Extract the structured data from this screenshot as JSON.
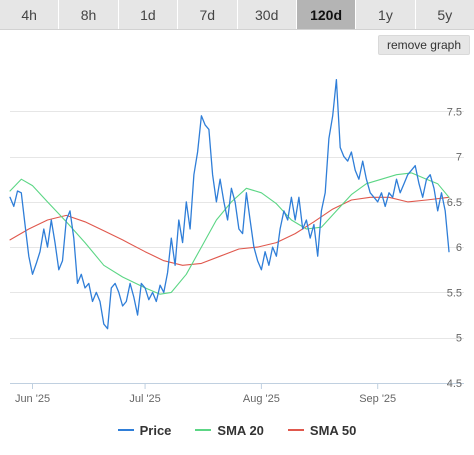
{
  "tabs": [
    {
      "label": "4h",
      "active": false
    },
    {
      "label": "8h",
      "active": false
    },
    {
      "label": "1d",
      "active": false
    },
    {
      "label": "7d",
      "active": false
    },
    {
      "label": "30d",
      "active": false
    },
    {
      "label": "120d",
      "active": true
    },
    {
      "label": "1y",
      "active": false
    },
    {
      "label": "5y",
      "active": false
    }
  ],
  "remove_graph_label": "remove graph",
  "legend": [
    {
      "label": "Price",
      "color": "#2f7ed8"
    },
    {
      "label": "SMA 20",
      "color": "#5cd685"
    },
    {
      "label": "SMA 50",
      "color": "#e0584d"
    }
  ],
  "chart_data": {
    "type": "line",
    "title": "",
    "xlabel": "",
    "ylabel": "",
    "ylim": [
      4.5,
      8.0
    ],
    "yticks": [
      4.5,
      5,
      5.5,
      6,
      6.5,
      7,
      7.5
    ],
    "ytick_labels": [
      "4.5",
      "5",
      "5.5",
      "6",
      "6.5",
      "7",
      "7.5"
    ],
    "xlim": [
      "2025-05-26",
      "2025-09-24"
    ],
    "xticks": [
      {
        "date": "2025-06-01",
        "label": "Jun '25"
      },
      {
        "date": "2025-07-01",
        "label": "Jul '25"
      },
      {
        "date": "2025-08-01",
        "label": "Aug '25"
      },
      {
        "date": "2025-09-01",
        "label": "Sep '25"
      }
    ],
    "grid": true,
    "legend_position": "bottom",
    "series": [
      {
        "name": "Price",
        "color": "#2f7ed8",
        "points": [
          [
            "2025-05-26",
            6.55
          ],
          [
            "2025-05-27",
            6.45
          ],
          [
            "2025-05-28",
            6.62
          ],
          [
            "2025-05-29",
            6.6
          ],
          [
            "2025-05-30",
            6.25
          ],
          [
            "2025-05-31",
            5.9
          ],
          [
            "2025-06-01",
            5.7
          ],
          [
            "2025-06-02",
            5.82
          ],
          [
            "2025-06-03",
            5.95
          ],
          [
            "2025-06-04",
            6.2
          ],
          [
            "2025-06-05",
            6.0
          ],
          [
            "2025-06-06",
            6.3
          ],
          [
            "2025-06-07",
            6.05
          ],
          [
            "2025-06-08",
            5.75
          ],
          [
            "2025-06-09",
            5.85
          ],
          [
            "2025-06-10",
            6.3
          ],
          [
            "2025-06-11",
            6.4
          ],
          [
            "2025-06-12",
            6.1
          ],
          [
            "2025-06-13",
            5.6
          ],
          [
            "2025-06-14",
            5.7
          ],
          [
            "2025-06-15",
            5.55
          ],
          [
            "2025-06-16",
            5.6
          ],
          [
            "2025-06-17",
            5.4
          ],
          [
            "2025-06-18",
            5.5
          ],
          [
            "2025-06-19",
            5.4
          ],
          [
            "2025-06-20",
            5.15
          ],
          [
            "2025-06-21",
            5.1
          ],
          [
            "2025-06-22",
            5.55
          ],
          [
            "2025-06-23",
            5.6
          ],
          [
            "2025-06-24",
            5.5
          ],
          [
            "2025-06-25",
            5.35
          ],
          [
            "2025-06-26",
            5.4
          ],
          [
            "2025-06-27",
            5.6
          ],
          [
            "2025-06-28",
            5.45
          ],
          [
            "2025-06-29",
            5.25
          ],
          [
            "2025-06-30",
            5.6
          ],
          [
            "2025-07-01",
            5.55
          ],
          [
            "2025-07-02",
            5.42
          ],
          [
            "2025-07-03",
            5.5
          ],
          [
            "2025-07-04",
            5.4
          ],
          [
            "2025-07-05",
            5.58
          ],
          [
            "2025-07-06",
            5.5
          ],
          [
            "2025-07-07",
            5.72
          ],
          [
            "2025-07-08",
            6.1
          ],
          [
            "2025-07-09",
            5.8
          ],
          [
            "2025-07-10",
            6.3
          ],
          [
            "2025-07-11",
            6.05
          ],
          [
            "2025-07-12",
            6.5
          ],
          [
            "2025-07-13",
            6.2
          ],
          [
            "2025-07-14",
            6.8
          ],
          [
            "2025-07-15",
            7.05
          ],
          [
            "2025-07-16",
            7.45
          ],
          [
            "2025-07-17",
            7.35
          ],
          [
            "2025-07-18",
            7.3
          ],
          [
            "2025-07-19",
            6.8
          ],
          [
            "2025-07-20",
            6.5
          ],
          [
            "2025-07-21",
            6.75
          ],
          [
            "2025-07-22",
            6.5
          ],
          [
            "2025-07-23",
            6.3
          ],
          [
            "2025-07-24",
            6.65
          ],
          [
            "2025-07-25",
            6.5
          ],
          [
            "2025-07-26",
            6.2
          ],
          [
            "2025-07-27",
            6.15
          ],
          [
            "2025-07-28",
            6.6
          ],
          [
            "2025-07-29",
            6.3
          ],
          [
            "2025-07-30",
            6.0
          ],
          [
            "2025-07-31",
            5.85
          ],
          [
            "2025-08-01",
            5.75
          ],
          [
            "2025-08-02",
            5.95
          ],
          [
            "2025-08-03",
            5.8
          ],
          [
            "2025-08-04",
            6.0
          ],
          [
            "2025-08-05",
            5.9
          ],
          [
            "2025-08-06",
            6.2
          ],
          [
            "2025-08-07",
            6.4
          ],
          [
            "2025-08-08",
            6.3
          ],
          [
            "2025-08-09",
            6.55
          ],
          [
            "2025-08-10",
            6.3
          ],
          [
            "2025-08-11",
            6.55
          ],
          [
            "2025-08-12",
            6.2
          ],
          [
            "2025-08-13",
            6.3
          ],
          [
            "2025-08-14",
            6.1
          ],
          [
            "2025-08-15",
            6.25
          ],
          [
            "2025-08-16",
            5.9
          ],
          [
            "2025-08-17",
            6.4
          ],
          [
            "2025-08-18",
            6.6
          ],
          [
            "2025-08-19",
            7.2
          ],
          [
            "2025-08-20",
            7.45
          ],
          [
            "2025-08-21",
            7.85
          ],
          [
            "2025-08-22",
            7.1
          ],
          [
            "2025-08-23",
            7.0
          ],
          [
            "2025-08-24",
            6.95
          ],
          [
            "2025-08-25",
            7.05
          ],
          [
            "2025-08-26",
            6.85
          ],
          [
            "2025-08-27",
            6.75
          ],
          [
            "2025-08-28",
            6.95
          ],
          [
            "2025-08-29",
            6.75
          ],
          [
            "2025-08-30",
            6.6
          ],
          [
            "2025-08-31",
            6.55
          ],
          [
            "2025-09-01",
            6.5
          ],
          [
            "2025-09-02",
            6.6
          ],
          [
            "2025-09-03",
            6.45
          ],
          [
            "2025-09-04",
            6.6
          ],
          [
            "2025-09-05",
            6.55
          ],
          [
            "2025-09-06",
            6.75
          ],
          [
            "2025-09-07",
            6.6
          ],
          [
            "2025-09-08",
            6.7
          ],
          [
            "2025-09-09",
            6.8
          ],
          [
            "2025-09-10",
            6.85
          ],
          [
            "2025-09-11",
            6.9
          ],
          [
            "2025-09-12",
            6.7
          ],
          [
            "2025-09-13",
            6.55
          ],
          [
            "2025-09-14",
            6.75
          ],
          [
            "2025-09-15",
            6.8
          ],
          [
            "2025-09-16",
            6.65
          ],
          [
            "2025-09-17",
            6.4
          ],
          [
            "2025-09-18",
            6.6
          ],
          [
            "2025-09-19",
            6.4
          ],
          [
            "2025-09-20",
            5.95
          ]
        ]
      },
      {
        "name": "SMA 20",
        "color": "#5cd685",
        "points": [
          [
            "2025-05-26",
            6.62
          ],
          [
            "2025-05-29",
            6.75
          ],
          [
            "2025-06-01",
            6.68
          ],
          [
            "2025-06-05",
            6.5
          ],
          [
            "2025-06-10",
            6.28
          ],
          [
            "2025-06-15",
            6.05
          ],
          [
            "2025-06-20",
            5.8
          ],
          [
            "2025-06-25",
            5.67
          ],
          [
            "2025-07-01",
            5.55
          ],
          [
            "2025-07-05",
            5.48
          ],
          [
            "2025-07-08",
            5.5
          ],
          [
            "2025-07-12",
            5.7
          ],
          [
            "2025-07-16",
            6.0
          ],
          [
            "2025-07-20",
            6.3
          ],
          [
            "2025-07-24",
            6.5
          ],
          [
            "2025-07-28",
            6.65
          ],
          [
            "2025-08-01",
            6.6
          ],
          [
            "2025-08-05",
            6.48
          ],
          [
            "2025-08-09",
            6.3
          ],
          [
            "2025-08-13",
            6.2
          ],
          [
            "2025-08-17",
            6.22
          ],
          [
            "2025-08-21",
            6.4
          ],
          [
            "2025-08-25",
            6.58
          ],
          [
            "2025-08-29",
            6.7
          ],
          [
            "2025-09-02",
            6.75
          ],
          [
            "2025-09-06",
            6.8
          ],
          [
            "2025-09-10",
            6.82
          ],
          [
            "2025-09-14",
            6.75
          ],
          [
            "2025-09-17",
            6.7
          ],
          [
            "2025-09-20",
            6.55
          ]
        ]
      },
      {
        "name": "SMA 50",
        "color": "#e0584d",
        "points": [
          [
            "2025-05-26",
            6.08
          ],
          [
            "2025-05-31",
            6.2
          ],
          [
            "2025-06-05",
            6.3
          ],
          [
            "2025-06-10",
            6.35
          ],
          [
            "2025-06-15",
            6.28
          ],
          [
            "2025-06-20",
            6.18
          ],
          [
            "2025-06-25",
            6.08
          ],
          [
            "2025-07-01",
            5.95
          ],
          [
            "2025-07-06",
            5.85
          ],
          [
            "2025-07-11",
            5.8
          ],
          [
            "2025-07-16",
            5.82
          ],
          [
            "2025-07-21",
            5.9
          ],
          [
            "2025-07-26",
            5.98
          ],
          [
            "2025-07-31",
            6.0
          ],
          [
            "2025-08-05",
            6.05
          ],
          [
            "2025-08-10",
            6.15
          ],
          [
            "2025-08-15",
            6.28
          ],
          [
            "2025-08-20",
            6.42
          ],
          [
            "2025-08-25",
            6.52
          ],
          [
            "2025-08-30",
            6.55
          ],
          [
            "2025-09-04",
            6.55
          ],
          [
            "2025-09-09",
            6.5
          ],
          [
            "2025-09-14",
            6.52
          ],
          [
            "2025-09-20",
            6.55
          ]
        ]
      }
    ]
  }
}
